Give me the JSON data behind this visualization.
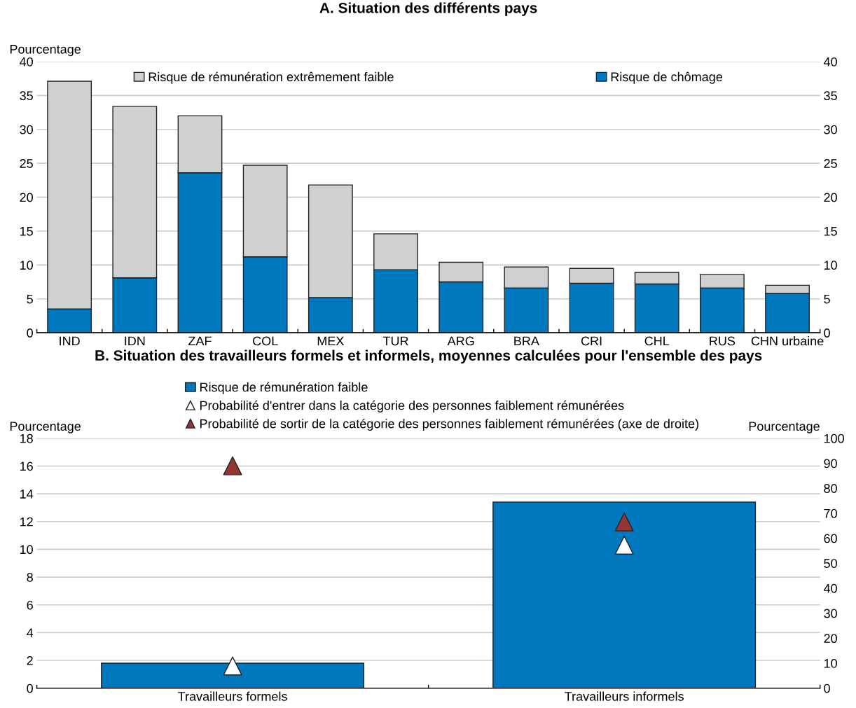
{
  "chart_data": [
    {
      "type": "bar",
      "title": "A. Situation des différents pays",
      "ylabel": "Pourcentage",
      "stacked": true,
      "categories": [
        "IND",
        "IDN",
        "ZAF",
        "COL",
        "MEX",
        "TUR",
        "ARG",
        "BRA",
        "CRI",
        "CHL",
        "RUS",
        "CHN urbaine"
      ],
      "series": [
        {
          "name": "Risque de chômage",
          "color": "#0078be",
          "values": [
            3.5,
            8.1,
            23.6,
            11.2,
            5.2,
            9.3,
            7.5,
            6.6,
            7.3,
            7.2,
            6.6,
            5.8
          ]
        },
        {
          "name": "Risque de rémunération extrêmement faible",
          "color": "#cfd0d2",
          "values": [
            33.6,
            25.3,
            8.4,
            13.5,
            16.6,
            5.3,
            2.9,
            3.1,
            2.2,
            1.7,
            2.0,
            1.2
          ]
        }
      ],
      "ylim": [
        0,
        40
      ],
      "yticks": [
        0,
        5,
        10,
        15,
        20,
        25,
        30,
        35,
        40
      ],
      "y2lim": [
        0,
        40
      ],
      "y2ticks": [
        0,
        5,
        10,
        15,
        20,
        25,
        30,
        35,
        40
      ],
      "grid": "y",
      "legend": "top"
    },
    {
      "type": "bar",
      "title": "B. Situation des travailleurs formels et informels, moyennes calculées pour l'ensemble des pays",
      "ylabel": "Pourcentage",
      "y2label": "Pourcentage",
      "categories": [
        "Travailleurs formels",
        "Travailleurs informels"
      ],
      "series": [
        {
          "name": "Risque de rémunération faible",
          "color": "#0078be",
          "values": [
            1.8,
            13.4
          ]
        },
        {
          "name": "Probabilité d'entrer dans la catégorie des personnes faiblement rémunérées",
          "type": "scatter",
          "marker": "triangle",
          "color": "#ffffff",
          "values": [
            1.6,
            10.3
          ]
        },
        {
          "name": "Probabilité de sortir de la catégorie des personnes faiblement rémunérées (axe de droite)",
          "type": "scatter",
          "marker": "triangle",
          "color": "#943634",
          "axis": "y2",
          "values": [
            89,
            66.5
          ]
        }
      ],
      "ylim": [
        0,
        18
      ],
      "yticks": [
        0,
        2,
        4,
        6,
        8,
        10,
        12,
        14,
        16,
        18
      ],
      "y2lim": [
        0,
        100
      ],
      "y2ticks": [
        0,
        10,
        20,
        30,
        40,
        50,
        60,
        70,
        80,
        90,
        100
      ],
      "grid": "y",
      "legend": "top left"
    }
  ]
}
